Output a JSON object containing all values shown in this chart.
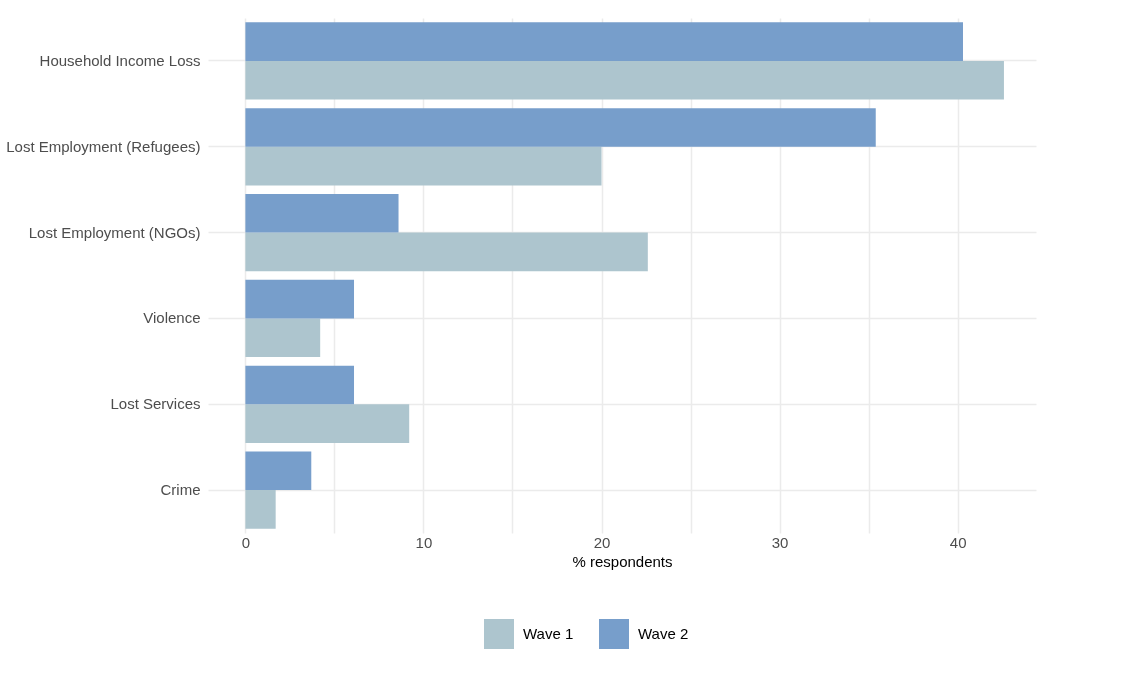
{
  "chart_data": {
    "type": "bar",
    "orientation": "horizontal",
    "xlabel": "% respondents",
    "categories": [
      "Household Income Loss",
      "Lost Employment (Refugees)",
      "Lost Employment (NGOs)",
      "Violence",
      "Lost Services",
      "Crime"
    ],
    "series": [
      {
        "name": "Wave 1",
        "color": "#adc5ce",
        "values": [
          42.6,
          20.0,
          22.6,
          4.2,
          9.2,
          1.7
        ]
      },
      {
        "name": "Wave 2",
        "color": "#779ecb",
        "values": [
          40.3,
          35.4,
          8.6,
          6.1,
          6.1,
          3.7
        ]
      }
    ],
    "xlim": [
      -2.1,
      44.4
    ],
    "xticks": [
      0,
      {
        "value": 5,
        "label": null
      },
      10,
      {
        "value": 15,
        "label": null
      },
      20,
      {
        "value": 25,
        "label": null
      },
      30,
      {
        "value": 35,
        "label": null
      },
      40
    ],
    "grid": true,
    "legend": "bottom"
  }
}
